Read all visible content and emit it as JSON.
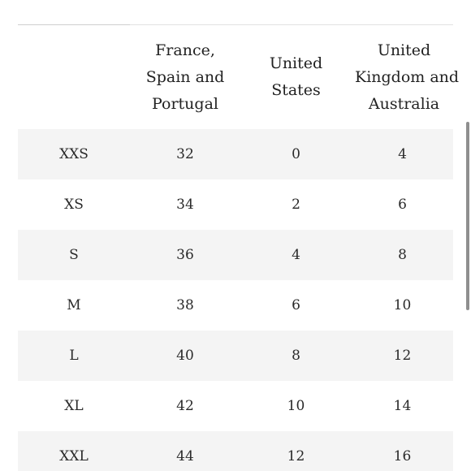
{
  "table": {
    "headers": [
      "",
      "France, Spain and Portugal",
      "United States",
      "United Kingdom and Australia"
    ],
    "rows": [
      [
        "XXS",
        "32",
        "0",
        "4"
      ],
      [
        "XS",
        "34",
        "2",
        "6"
      ],
      [
        "S",
        "36",
        "4",
        "8"
      ],
      [
        "M",
        "38",
        "6",
        "10"
      ],
      [
        "L",
        "40",
        "8",
        "12"
      ],
      [
        "XL",
        "42",
        "10",
        "14"
      ],
      [
        "XXL",
        "44",
        "12",
        "16"
      ]
    ]
  }
}
